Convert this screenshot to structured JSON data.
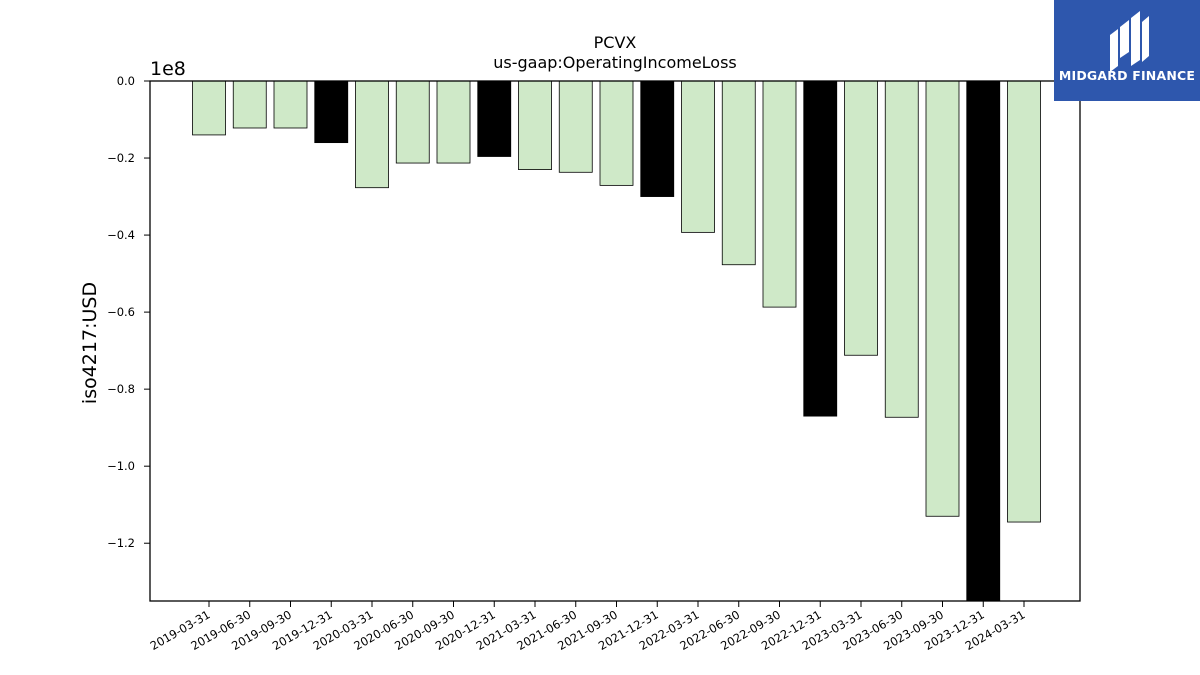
{
  "brand": {
    "name": "MIDGARD FINANCE",
    "bg_color": "#2e57ad",
    "icon": "midgard-m-logo-icon"
  },
  "chart_data": {
    "type": "bar",
    "title": "PCVX",
    "subtitle": "us-gaap:OperatingIncomeLoss",
    "ylabel": "iso4217:USD",
    "xlabel": "",
    "y_scale_label": "1e8",
    "y_multiplier": 100000000,
    "ylim": [
      -1.35,
      0.0
    ],
    "yticks": [
      0.0,
      -0.2,
      -0.4,
      -0.6,
      -0.8,
      -1.0,
      -1.2
    ],
    "ytick_labels": [
      "0.0",
      "−0.2",
      "−0.4",
      "−0.6",
      "−0.8",
      "−1.0",
      "−1.2"
    ],
    "grid": false,
    "colors": {
      "quarter": "#cfe9c8",
      "annual": "#000000",
      "edge": "#000000"
    },
    "categories": [
      "2019-03-31",
      "2019-06-30",
      "2019-09-30",
      "2019-12-31",
      "2020-03-31",
      "2020-06-30",
      "2020-09-30",
      "2020-12-31",
      "2021-03-31",
      "2021-06-30",
      "2021-09-30",
      "2021-12-31",
      "2022-03-31",
      "2022-06-30",
      "2022-09-30",
      "2022-12-31",
      "2023-03-31",
      "2023-06-30",
      "2023-09-30",
      "2023-12-31",
      "2024-03-31"
    ],
    "values": [
      -0.14,
      -0.122,
      -0.122,
      -0.16,
      -0.277,
      -0.213,
      -0.213,
      -0.196,
      -0.23,
      -0.237,
      -0.271,
      -0.3,
      -0.393,
      -0.477,
      -0.587,
      -0.87,
      -0.712,
      -0.873,
      -1.13,
      -1.35,
      -1.145
    ],
    "annual": [
      false,
      false,
      false,
      true,
      false,
      false,
      false,
      true,
      false,
      false,
      false,
      true,
      false,
      false,
      false,
      true,
      false,
      false,
      false,
      true,
      false
    ]
  }
}
